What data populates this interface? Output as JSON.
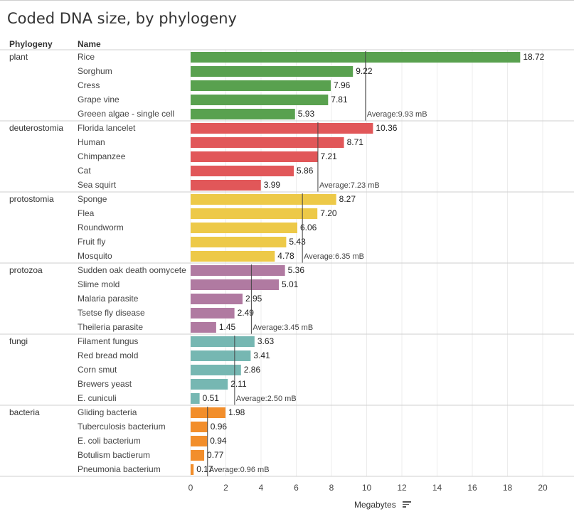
{
  "title": "Coded DNA size, by phylogeny",
  "headers": {
    "phylogeny": "Phylogeny",
    "name": "Name"
  },
  "x_axis_title": "Megabytes",
  "chart_data": {
    "type": "bar",
    "orientation": "horizontal",
    "xlabel": "Megabytes",
    "xlim": [
      0,
      20
    ],
    "xticks": [
      0,
      2,
      4,
      6,
      8,
      10,
      12,
      14,
      16,
      18,
      20
    ],
    "grid": true,
    "groups": [
      {
        "phylogeny": "plant",
        "color": "#59a14f",
        "average_label": "Average:9.93 mB",
        "average": 9.93,
        "items": [
          {
            "name": "Rice",
            "value": 18.72
          },
          {
            "name": "Sorghum",
            "value": 9.22
          },
          {
            "name": "Cress",
            "value": 7.96
          },
          {
            "name": "Grape vine",
            "value": 7.81
          },
          {
            "name": "Greeen algae - single cell",
            "value": 5.93
          }
        ]
      },
      {
        "phylogeny": "deuterostomia",
        "color": "#e15759",
        "average_label": "Average:7.23 mB",
        "average": 7.23,
        "items": [
          {
            "name": "Florida lancelet",
            "value": 10.36
          },
          {
            "name": "Human",
            "value": 8.71
          },
          {
            "name": "Chimpanzee",
            "value": 7.21
          },
          {
            "name": "Cat",
            "value": 5.86
          },
          {
            "name": "Sea squirt",
            "value": 3.99
          }
        ]
      },
      {
        "phylogeny": "protostomia",
        "color": "#edc948",
        "average_label": "Average:6.35 mB",
        "average": 6.35,
        "items": [
          {
            "name": "Sponge",
            "value": 8.27
          },
          {
            "name": "Flea",
            "value": 7.2
          },
          {
            "name": "Roundworm",
            "value": 6.06
          },
          {
            "name": "Fruit fly",
            "value": 5.43
          },
          {
            "name": "Mosquito",
            "value": 4.78
          }
        ]
      },
      {
        "phylogeny": "protozoa",
        "color": "#b07aa1",
        "average_label": "Average:3.45 mB",
        "average": 3.45,
        "items": [
          {
            "name": "Sudden oak death oomycete",
            "value": 5.36
          },
          {
            "name": "Slime mold",
            "value": 5.01
          },
          {
            "name": "Malaria parasite",
            "value": 2.95
          },
          {
            "name": "Tsetse fly disease",
            "value": 2.49
          },
          {
            "name": "Theileria parasite",
            "value": 1.45
          }
        ]
      },
      {
        "phylogeny": "fungi",
        "color": "#76b7b2",
        "average_label": "Average:2.50 mB",
        "average": 2.5,
        "items": [
          {
            "name": "Filament fungus",
            "value": 3.63
          },
          {
            "name": "Red bread mold",
            "value": 3.41
          },
          {
            "name": "Corn smut",
            "value": 2.86
          },
          {
            "name": "Brewers yeast",
            "value": 2.11
          },
          {
            "name": "E. cuniculi",
            "value": 0.51
          }
        ]
      },
      {
        "phylogeny": "bacteria",
        "color": "#f28e2b",
        "average_label": "Average:0.96 mB",
        "average": 0.96,
        "items": [
          {
            "name": "Gliding bacteria",
            "value": 1.98
          },
          {
            "name": "Tuberculosis bacterium",
            "value": 0.96
          },
          {
            "name": "E. coli bacterium",
            "value": 0.94
          },
          {
            "name": "Botulism bactierum",
            "value": 0.77
          },
          {
            "name": "Pneumonia bacterium",
            "value": 0.17
          }
        ]
      }
    ]
  }
}
